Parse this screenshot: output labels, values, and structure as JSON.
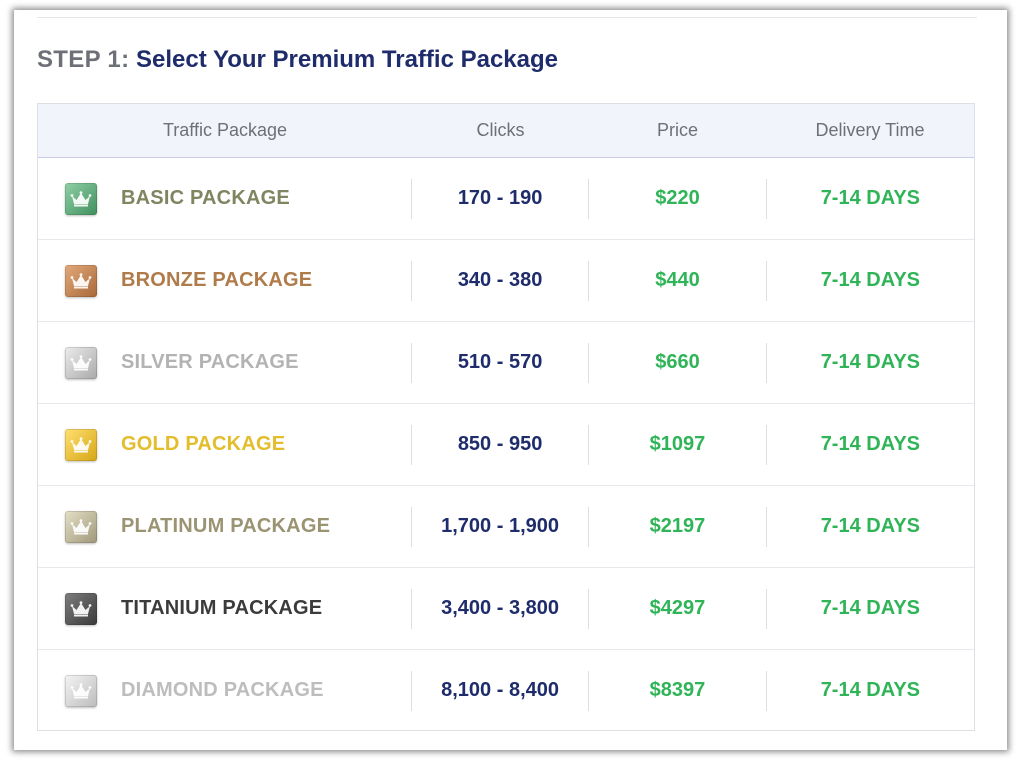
{
  "heading": {
    "prefix": "STEP 1:",
    "title": "Select Your Premium Traffic Package"
  },
  "table": {
    "columns": [
      "Traffic Package",
      "Clicks",
      "Price",
      "Delivery Time"
    ],
    "rows": [
      {
        "name": "BASIC PACKAGE",
        "clicks": "170 - 190",
        "price": "$220",
        "delivery": "7-14 DAYS",
        "icon": "emerald-crown-icon",
        "name_color": "#7f8560",
        "badge_from": "#8fd0a6",
        "badge_to": "#3f8f5e"
      },
      {
        "name": "BRONZE PACKAGE",
        "clicks": "340 - 380",
        "price": "$440",
        "delivery": "7-14 DAYS",
        "icon": "bronze-crown-icon",
        "name_color": "#b07b4a",
        "badge_from": "#e3a97a",
        "badge_to": "#a8683a"
      },
      {
        "name": "SILVER PACKAGE",
        "clicks": "510 - 570",
        "price": "$660",
        "delivery": "7-14 DAYS",
        "icon": "silver-crown-icon",
        "name_color": "#b3b3b3",
        "badge_from": "#ececec",
        "badge_to": "#a9a9a9"
      },
      {
        "name": "GOLD PACKAGE",
        "clicks": "850 - 950",
        "price": "$1097",
        "delivery": "7-14 DAYS",
        "icon": "gold-crown-icon",
        "name_color": "#e3bd2c",
        "badge_from": "#ffe070",
        "badge_to": "#d6a615"
      },
      {
        "name": "PLATINUM PACKAGE",
        "clicks": "1,700 - 1,900",
        "price": "$2197",
        "delivery": "7-14 DAYS",
        "icon": "platinum-crown-icon",
        "name_color": "#9a9473",
        "badge_from": "#e4dfc6",
        "badge_to": "#9f987a"
      },
      {
        "name": "TITANIUM PACKAGE",
        "clicks": "3,400 - 3,800",
        "price": "$4297",
        "delivery": "7-14 DAYS",
        "icon": "titanium-crown-icon",
        "name_color": "#3b3b3b",
        "badge_from": "#7d7d7d",
        "badge_to": "#3a3a3a"
      },
      {
        "name": "DIAMOND PACKAGE",
        "clicks": "8,100 - 8,400",
        "price": "$8397",
        "delivery": "7-14 DAYS",
        "icon": "diamond-crown-icon",
        "name_color": "#bdbdbd",
        "badge_from": "#f4f4f4",
        "badge_to": "#bcbcbc"
      }
    ]
  },
  "colors": {
    "heading_prefix": "#6e7078",
    "heading_title": "#1f2c6b",
    "clicks": "#1f2c6b",
    "price": "#2fb457",
    "delivery": "#2fb457"
  }
}
